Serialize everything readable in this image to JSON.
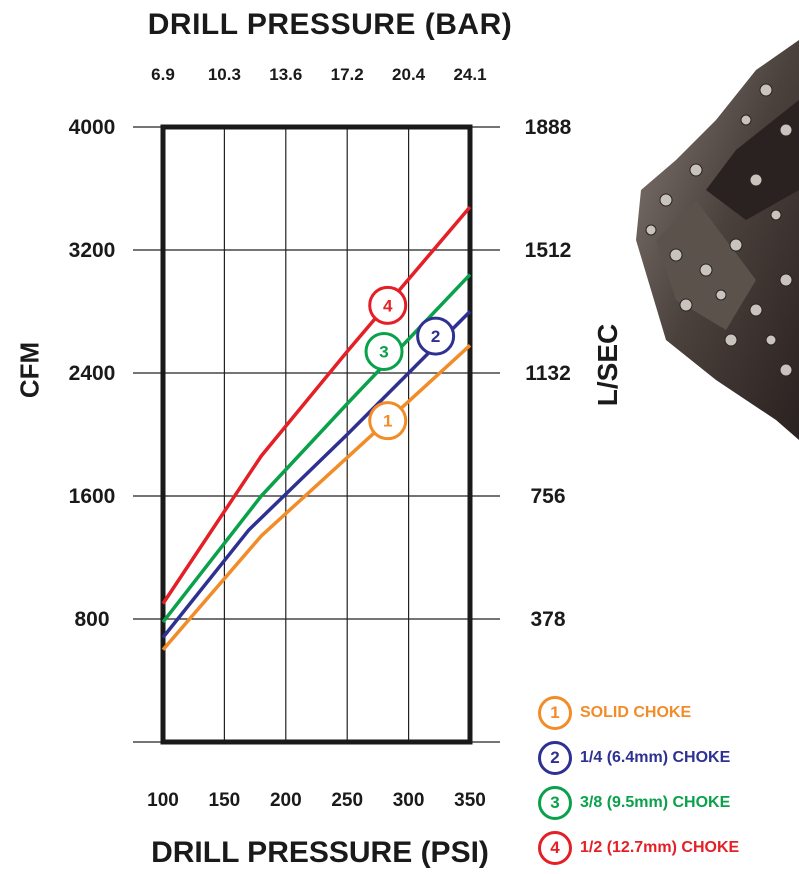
{
  "chart_data": {
    "type": "line",
    "title": "DRILL PRESSURE (BAR)",
    "xlabel": "DRILL PRESSURE (PSI)",
    "ylabel": "CFM",
    "ylabel_right": "L/SEC",
    "xlim": [
      100,
      350
    ],
    "ylim": [
      0,
      4000
    ],
    "grid": true,
    "x_ticks": [
      "100",
      "150",
      "200",
      "250",
      "300",
      "350"
    ],
    "x_tick_values": [
      100,
      150,
      200,
      250,
      300,
      350
    ],
    "x2_ticks": [
      "6.9",
      "10.3",
      "13.6",
      "17.2",
      "20.4",
      "24.1"
    ],
    "y_ticks": [
      "800",
      "1600",
      "2400",
      "3200",
      "4000"
    ],
    "y_tick_values": [
      800,
      1600,
      2400,
      3200,
      4000
    ],
    "y2_ticks": [
      "378",
      "756",
      "1132",
      "1512",
      "1888"
    ],
    "series": [
      {
        "name": "SOLID CHOKE",
        "marker": "1",
        "color": "#f28c28",
        "x": [
          100,
          180,
          250,
          350
        ],
        "y": [
          600,
          1340,
          1850,
          2580
        ]
      },
      {
        "name": "1/4 (6.4mm) CHOKE",
        "marker": "2",
        "color": "#2e3191",
        "x": [
          100,
          170,
          250,
          350
        ],
        "y": [
          680,
          1380,
          2000,
          2800
        ]
      },
      {
        "name": "3/8 (9.5mm) CHOKE",
        "marker": "3",
        "color": "#0aa14b",
        "x": [
          100,
          180,
          250,
          350
        ],
        "y": [
          780,
          1600,
          2200,
          3040
        ]
      },
      {
        "name": "1/2 (12.7mm) CHOKE",
        "marker": "4",
        "color": "#e41f26",
        "x": [
          100,
          180,
          250,
          350
        ],
        "y": [
          900,
          1860,
          2540,
          3480
        ]
      }
    ],
    "series_label_positions": [
      {
        "x": 283,
        "y": 2090
      },
      {
        "x": 322,
        "y": 2640
      },
      {
        "x": 280,
        "y": 2540
      },
      {
        "x": 283,
        "y": 2840
      }
    ]
  },
  "legend": [
    {
      "number": "1",
      "label": "SOLID CHOKE",
      "color": "#f28c28"
    },
    {
      "number": "2",
      "label": "1/4 (6.4mm) CHOKE",
      "color": "#2e3191"
    },
    {
      "number": "3",
      "label": "3/8 (9.5mm) CHOKE",
      "color": "#0aa14b"
    },
    {
      "number": "4",
      "label": "1/2 (12.7mm) CHOKE",
      "color": "#e41f26"
    }
  ],
  "photo": {
    "icon": "drill-bit-photo"
  }
}
